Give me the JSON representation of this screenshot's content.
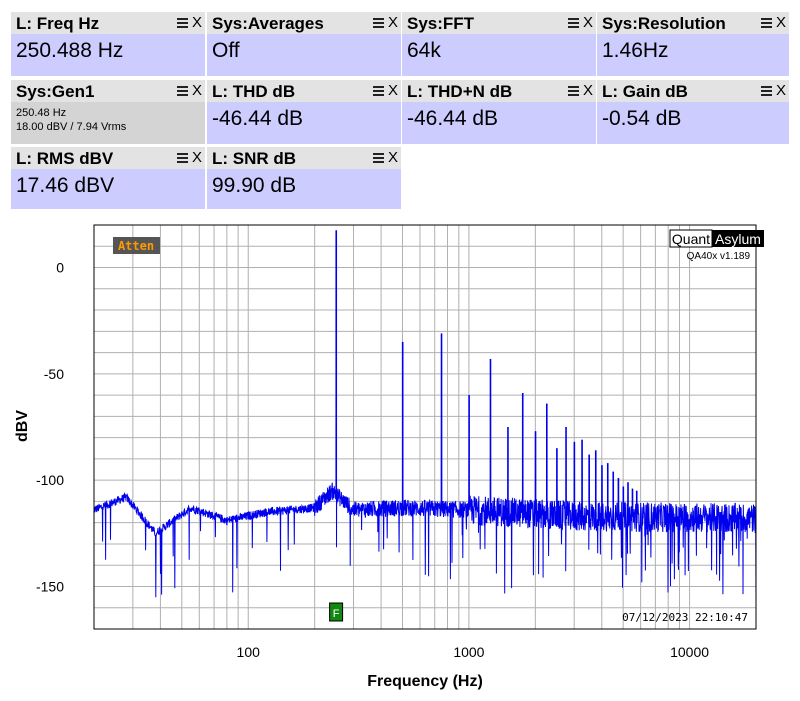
{
  "widgets": [
    {
      "title": "L: Freq Hz",
      "value": "250.488 Hz"
    },
    {
      "title": "Sys:Averages",
      "value": "Off"
    },
    {
      "title": "Sys:FFT",
      "value": "64k"
    },
    {
      "title": "Sys:Resolution",
      "value": "1.46Hz"
    },
    {
      "title": "Sys:Gen1",
      "line1": "250.48 Hz",
      "line2": "18.00 dBV  / 7.94 Vrms"
    },
    {
      "title": "L: THD dB",
      "value": "-46.44 dB"
    },
    {
      "title": "L: THD+N dB",
      "value": "-46.44 dB"
    },
    {
      "title": "L: Gain dB",
      "value": "-0.54 dB"
    },
    {
      "title": "L: RMS dBV",
      "value": "17.46 dBV"
    },
    {
      "title": "L: SNR dB",
      "value": "99.90 dB"
    }
  ],
  "widget_controls": {
    "menu_icon": "hamburger-icon",
    "close_label": "X"
  },
  "colors": {
    "trace": "#0000ee",
    "widget_value_bg": "#ccccff",
    "widget_header_bg": "#e3e3e3",
    "atten_badge": "#ff9900",
    "marker": "#118811"
  },
  "chart_data": {
    "type": "line",
    "xlabel": "Frequency (Hz)",
    "ylabel": "dBV",
    "x_scale": "log",
    "xlim": [
      20,
      20000
    ],
    "ylim": [
      -170,
      20
    ],
    "x_ticks": [
      {
        "v": 100,
        "label": "100"
      },
      {
        "v": 1000,
        "label": "1000"
      },
      {
        "v": 10000,
        "label": "10000"
      }
    ],
    "y_ticks": [
      {
        "v": 0,
        "label": "0"
      },
      {
        "v": -50,
        "label": "-50"
      },
      {
        "v": -100,
        "label": "-100"
      },
      {
        "v": -150,
        "label": "-150"
      }
    ],
    "grid": true,
    "badge": "Atten",
    "brand": {
      "part1": "Quant",
      "part2": "Asylum",
      "version": "QA40x v1.189"
    },
    "timestamp": "07/12/2023  22:10:47",
    "marker_label": "F",
    "marker_freq": 250,
    "series": [
      {
        "fundamental": {
          "freq": 250.5,
          "level": 17.5
        },
        "harmonics": [
          {
            "freq": 501,
            "level": -35
          },
          {
            "freq": 751.5,
            "level": -31
          },
          {
            "freq": 1002,
            "level": -60
          },
          {
            "freq": 1252.5,
            "level": -43
          },
          {
            "freq": 1503,
            "level": -75
          },
          {
            "freq": 1753.5,
            "level": -59
          },
          {
            "freq": 2004,
            "level": -77
          },
          {
            "freq": 2254.5,
            "level": -64
          },
          {
            "freq": 2505,
            "level": -85
          },
          {
            "freq": 2755.5,
            "level": -75
          },
          {
            "freq": 3006,
            "level": -82
          },
          {
            "freq": 3256.5,
            "level": -81
          },
          {
            "freq": 3507,
            "level": -88
          },
          {
            "freq": 3757.5,
            "level": -86
          },
          {
            "freq": 4008,
            "level": -93
          },
          {
            "freq": 4258.5,
            "level": -92
          },
          {
            "freq": 4509,
            "level": -96
          },
          {
            "freq": 4759.5,
            "level": -99
          },
          {
            "freq": 5010,
            "level": -103
          },
          {
            "freq": 5260.5,
            "level": -101
          },
          {
            "freq": 5511,
            "level": -104
          },
          {
            "freq": 5761.5,
            "level": -105
          }
        ],
        "noise_floor": [
          {
            "f": 20,
            "db": -114
          },
          {
            "f": 28,
            "db": -108
          },
          {
            "f": 38,
            "db": -125
          },
          {
            "f": 55,
            "db": -113
          },
          {
            "f": 80,
            "db": -119
          },
          {
            "f": 120,
            "db": -115
          },
          {
            "f": 200,
            "db": -113
          },
          {
            "f": 240,
            "db": -105
          },
          {
            "f": 300,
            "db": -114
          },
          {
            "f": 500,
            "db": -113
          },
          {
            "f": 1000,
            "db": -114
          },
          {
            "f": 3000,
            "db": -117
          },
          {
            "f": 20000,
            "db": -118
          }
        ]
      }
    ]
  }
}
